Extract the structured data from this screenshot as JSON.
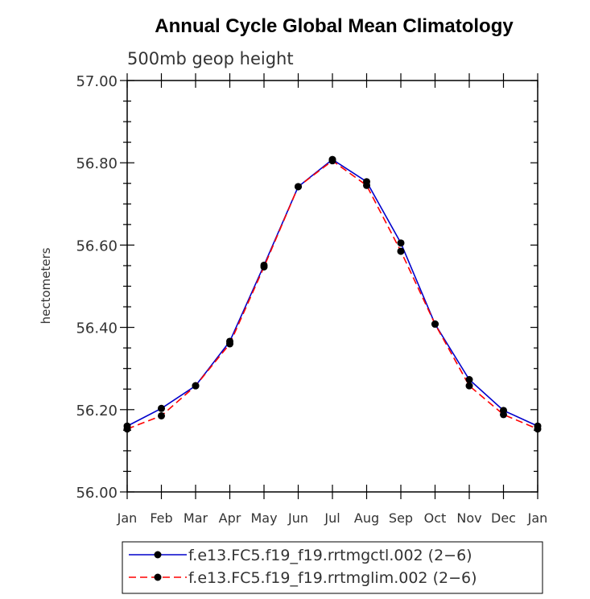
{
  "chart_data": {
    "type": "line",
    "title": "Annual Cycle Global Mean Climatology",
    "subtitle": "500mb geop height",
    "ylabel": "hectometers",
    "xlabel": "",
    "ylim": [
      56.0,
      57.0
    ],
    "yticks": [
      "56.00",
      "56.20",
      "56.40",
      "56.60",
      "56.80",
      "57.00"
    ],
    "ytick_values": [
      56.0,
      56.2,
      56.4,
      56.6,
      56.8,
      57.0
    ],
    "categories": [
      "Jan",
      "Feb",
      "Mar",
      "Apr",
      "May",
      "Jun",
      "Jul",
      "Aug",
      "Sep",
      "Oct",
      "Nov",
      "Dec",
      "Jan"
    ],
    "series": [
      {
        "name": "f.e13.FC5.f19_f19.rrtmgctl.002 (2−6)",
        "color": "#0000cc",
        "dash": "solid",
        "values": [
          56.16,
          56.203,
          56.258,
          56.366,
          56.551,
          56.742,
          56.808,
          56.754,
          56.605,
          56.408,
          56.273,
          56.198,
          56.16
        ]
      },
      {
        "name": "f.e13.FC5.f19_f19.rrtmglim.002 (2−6)",
        "color": "#ff0000",
        "dash": "dashed",
        "values": [
          56.153,
          56.185,
          56.258,
          56.36,
          56.547,
          56.742,
          56.805,
          56.745,
          56.585,
          56.408,
          56.258,
          56.188,
          56.153
        ]
      }
    ],
    "legend_position": "bottom"
  }
}
